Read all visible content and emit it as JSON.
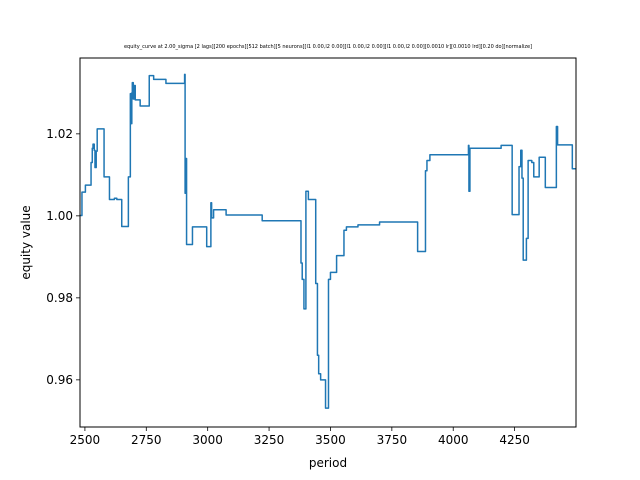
{
  "chart_data": {
    "type": "line",
    "title": "equity_curve at 2.00_sigma [2 lags][200 epochs][512 batch][5 neurons][l1 0.00,l2 0.00][l1 0.00,l2 0.00][l1 0.00,l2 0.00][0.0010 lr][0.0010 lrd][0.20 do][normalize]",
    "xlabel": "period",
    "ylabel": "equity value",
    "xlim": [
      2480,
      4500
    ],
    "ylim": [
      0.9485,
      1.0385
    ],
    "xticks": [
      2500,
      2750,
      3000,
      3250,
      3500,
      3750,
      4000,
      4250
    ],
    "xtick_labels": [
      "2500",
      "2750",
      "3000",
      "3250",
      "3500",
      "3750",
      "4000",
      "4250"
    ],
    "yticks": [
      0.96,
      0.98,
      1.0,
      1.02
    ],
    "ytick_labels": [
      "0.96",
      "0.98",
      "1.00",
      "1.02"
    ],
    "grid": false,
    "series": [
      {
        "color": "#1f77b4",
        "step": true,
        "points": [
          [
            2480,
            1.0001
          ],
          [
            2488,
            1.0058
          ],
          [
            2502,
            1.0075
          ],
          [
            2525,
            1.013
          ],
          [
            2530,
            1.0165
          ],
          [
            2533,
            1.0175
          ],
          [
            2538,
            1.016
          ],
          [
            2541,
            1.0118
          ],
          [
            2546,
            1.0158
          ],
          [
            2550,
            1.0212
          ],
          [
            2578,
            1.0095
          ],
          [
            2600,
            1.004
          ],
          [
            2620,
            1.0043
          ],
          [
            2630,
            1.004
          ],
          [
            2650,
            0.9974
          ],
          [
            2677,
            1.0095
          ],
          [
            2685,
            1.0298
          ],
          [
            2689,
            1.0225
          ],
          [
            2691,
            1.03
          ],
          [
            2693,
            1.0325
          ],
          [
            2697,
            1.0285
          ],
          [
            2701,
            1.0318
          ],
          [
            2705,
            1.0283
          ],
          [
            2725,
            1.0268
          ],
          [
            2762,
            1.0342
          ],
          [
            2780,
            1.0333
          ],
          [
            2830,
            1.0323
          ],
          [
            2906,
            1.0345
          ],
          [
            2908,
            1.0055
          ],
          [
            2910,
            1.014
          ],
          [
            2914,
            0.993
          ],
          [
            2938,
            0.9973
          ],
          [
            2996,
            0.9925
          ],
          [
            3013,
            1.0032
          ],
          [
            3016,
            0.9995
          ],
          [
            3024,
            1.0015
          ],
          [
            3075,
            1.0002
          ],
          [
            3222,
            0.9988
          ],
          [
            3380,
            0.9885
          ],
          [
            3385,
            0.9845
          ],
          [
            3392,
            0.9773
          ],
          [
            3400,
            1.006
          ],
          [
            3410,
            1.004
          ],
          [
            3440,
            0.9835
          ],
          [
            3447,
            0.966
          ],
          [
            3452,
            0.9615
          ],
          [
            3460,
            0.96
          ],
          [
            3480,
            0.9531
          ],
          [
            3492,
            0.9845
          ],
          [
            3500,
            0.9862
          ],
          [
            3525,
            0.9903
          ],
          [
            3555,
            0.9965
          ],
          [
            3565,
            0.9973
          ],
          [
            3612,
            0.9978
          ],
          [
            3700,
            0.9985
          ],
          [
            3855,
            0.9913
          ],
          [
            3887,
            1.011
          ],
          [
            3893,
            1.0135
          ],
          [
            3905,
            1.0149
          ],
          [
            4062,
            1.0172
          ],
          [
            4064,
            1.006
          ],
          [
            4068,
            1.0165
          ],
          [
            4195,
            1.0172
          ],
          [
            4240,
            1.0003
          ],
          [
            4268,
            1.012
          ],
          [
            4275,
            1.016
          ],
          [
            4280,
            1.0092
          ],
          [
            4285,
            0.9892
          ],
          [
            4298,
            0.9945
          ],
          [
            4305,
            1.0135
          ],
          [
            4320,
            1.013
          ],
          [
            4328,
            1.0095
          ],
          [
            4350,
            1.0143
          ],
          [
            4375,
            1.0069
          ],
          [
            4420,
            1.0218
          ],
          [
            4425,
            1.0173
          ],
          [
            4485,
            1.0115
          ],
          [
            4500,
            1.0115
          ]
        ]
      }
    ]
  }
}
